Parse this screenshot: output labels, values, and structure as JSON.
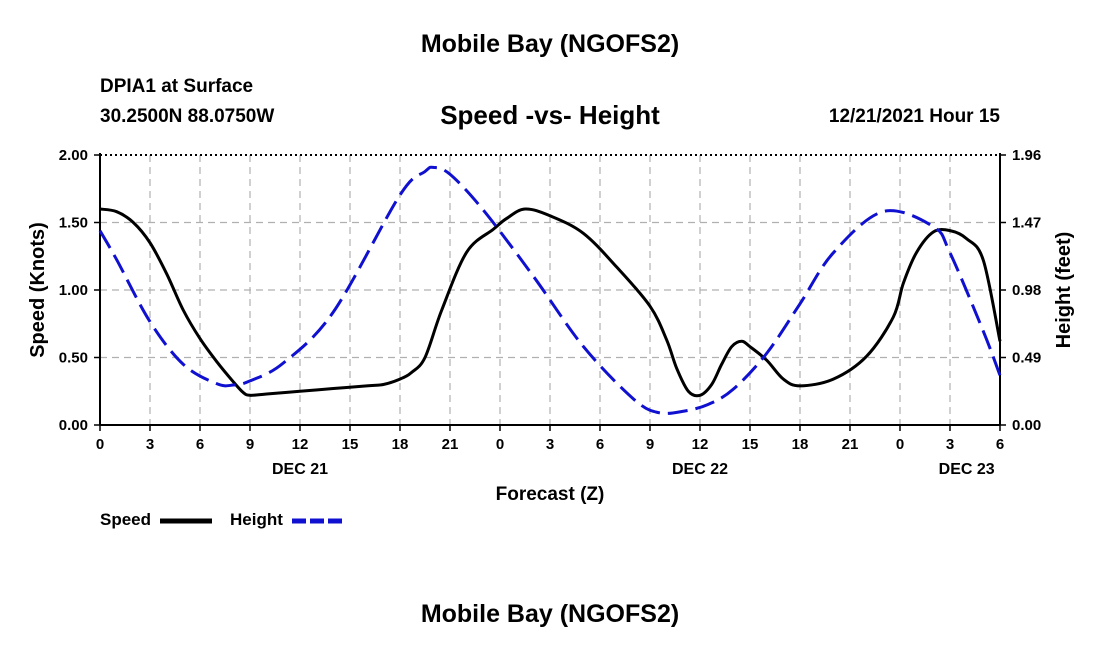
{
  "header": {
    "title": "Mobile Bay (NGOFS2)",
    "station": "DPIA1 at Surface",
    "coordinates": "30.2500N  88.0750W",
    "chart_title": "Speed -vs- Height",
    "datetime": "12/21/2021 Hour 15",
    "footer_title": "Mobile Bay (NGOFS2)"
  },
  "legend": {
    "speed_label": "Speed",
    "height_label": "Height"
  },
  "colors": {
    "speed": "#000000",
    "height": "#1010d0",
    "grid": "#b0b0b0"
  },
  "chart_data": {
    "type": "line",
    "title": "Speed -vs- Height",
    "xlabel": "Forecast (Z)",
    "ylabel": "Speed (Knots)",
    "y2label": "Height (feet)",
    "x_unit": "hours since 12/21 00Z",
    "xlim": [
      0,
      54
    ],
    "ylim": [
      0,
      2.0
    ],
    "y2lim": [
      0,
      1.96
    ],
    "x_ticks": [
      0,
      3,
      6,
      9,
      12,
      15,
      18,
      21,
      24,
      27,
      30,
      33,
      36,
      39,
      42,
      45,
      48,
      51,
      54
    ],
    "x_tick_labels": [
      "0",
      "3",
      "6",
      "9",
      "12",
      "15",
      "18",
      "21",
      "0",
      "3",
      "6",
      "9",
      "12",
      "15",
      "18",
      "21",
      "0",
      "3",
      "6"
    ],
    "date_labels": [
      {
        "x": 12,
        "label": "DEC 21"
      },
      {
        "x": 36,
        "label": "DEC 22"
      },
      {
        "x": 52,
        "label": "DEC 23"
      }
    ],
    "y_ticks": [
      0,
      0.5,
      1.0,
      1.5,
      2.0
    ],
    "y_tick_labels": [
      "0.00",
      "0.50",
      "1.00",
      "1.50",
      "2.00"
    ],
    "y2_tick_labels": [
      "0.00",
      "0.49",
      "0.98",
      "1.47",
      "1.96"
    ],
    "series": [
      {
        "name": "Speed",
        "axis": "left",
        "style": "solid",
        "x": [
          0,
          1,
          2,
          3,
          4,
          5,
          6,
          7,
          8,
          8.6,
          9,
          10,
          12,
          14,
          16,
          17,
          18,
          18.7,
          19.5,
          20.5,
          22,
          23.6,
          24.4,
          25.5,
          27,
          29,
          31,
          33,
          34,
          34.6,
          35.3,
          36,
          36.7,
          37.3,
          37.9,
          38.5,
          39,
          40,
          41,
          42,
          44,
          46,
          47.6,
          48.2,
          49,
          50,
          51,
          52,
          53,
          54
        ],
        "y": [
          1.6,
          1.58,
          1.5,
          1.35,
          1.12,
          0.85,
          0.64,
          0.47,
          0.32,
          0.24,
          0.22,
          0.23,
          0.25,
          0.27,
          0.29,
          0.3,
          0.34,
          0.39,
          0.5,
          0.85,
          1.28,
          1.45,
          1.53,
          1.6,
          1.55,
          1.42,
          1.17,
          0.88,
          0.63,
          0.42,
          0.25,
          0.22,
          0.3,
          0.45,
          0.58,
          0.62,
          0.58,
          0.48,
          0.34,
          0.29,
          0.34,
          0.51,
          0.8,
          1.05,
          1.28,
          1.43,
          1.44,
          1.38,
          1.22,
          0.62
        ]
      },
      {
        "name": "Height",
        "axis": "right",
        "style": "dashed",
        "x": [
          0,
          1,
          3,
          5,
          7,
          8,
          9,
          11,
          14,
          18,
          19.5,
          20,
          21,
          23,
          26,
          29,
          32,
          33.5,
          35,
          36.5,
          38,
          40,
          42,
          44,
          47,
          50,
          51,
          53,
          54
        ],
        "y": [
          1.41,
          1.2,
          0.75,
          0.44,
          0.3,
          0.29,
          0.32,
          0.45,
          0.82,
          1.67,
          1.84,
          1.87,
          1.82,
          1.56,
          1.08,
          0.57,
          0.19,
          0.09,
          0.1,
          0.15,
          0.26,
          0.52,
          0.88,
          1.25,
          1.55,
          1.44,
          1.25,
          0.68,
          0.36
        ]
      }
    ]
  }
}
